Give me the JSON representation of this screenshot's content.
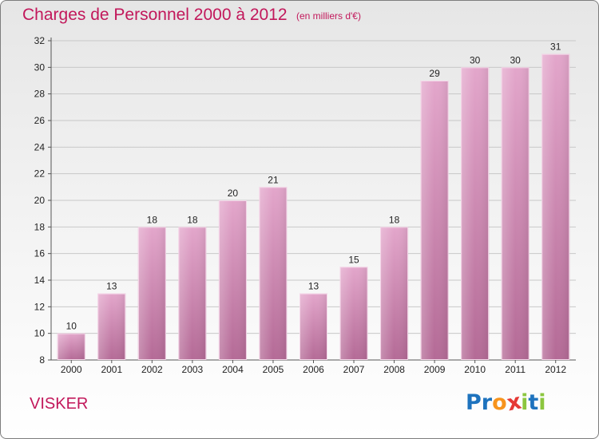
{
  "header": {
    "title": "Charges de Personnel 2000 à 2012",
    "subtitle": "(en milliers d'€)"
  },
  "footer": {
    "commune": "VISKER",
    "logo": {
      "letters": [
        "P",
        "r",
        "o",
        "x",
        "i",
        "t",
        "i"
      ],
      "colors": [
        "#1e73be",
        "#1e73be",
        "#f7941d",
        "#e53935",
        "#8cc63f",
        "#1e73be",
        "#8cc63f"
      ]
    }
  },
  "chart_data": {
    "type": "bar",
    "categories": [
      "2000",
      "2001",
      "2002",
      "2003",
      "2004",
      "2005",
      "2006",
      "2007",
      "2008",
      "2009",
      "2010",
      "2011",
      "2012"
    ],
    "values": [
      10,
      13,
      18,
      18,
      20,
      21,
      13,
      15,
      18,
      29,
      30,
      30,
      31
    ],
    "value_labels": [
      "10",
      "13",
      "18",
      "18",
      "20",
      "21",
      "13",
      "15",
      "18",
      "29",
      "30",
      "30",
      "31"
    ],
    "title": "Charges de Personnel 2000 à 2012",
    "ylim": [
      8,
      32
    ],
    "yticks": [
      8,
      10,
      12,
      14,
      16,
      18,
      20,
      22,
      24,
      26,
      28,
      30,
      32
    ],
    "grid": true,
    "bar_color": "#d98cb8"
  }
}
